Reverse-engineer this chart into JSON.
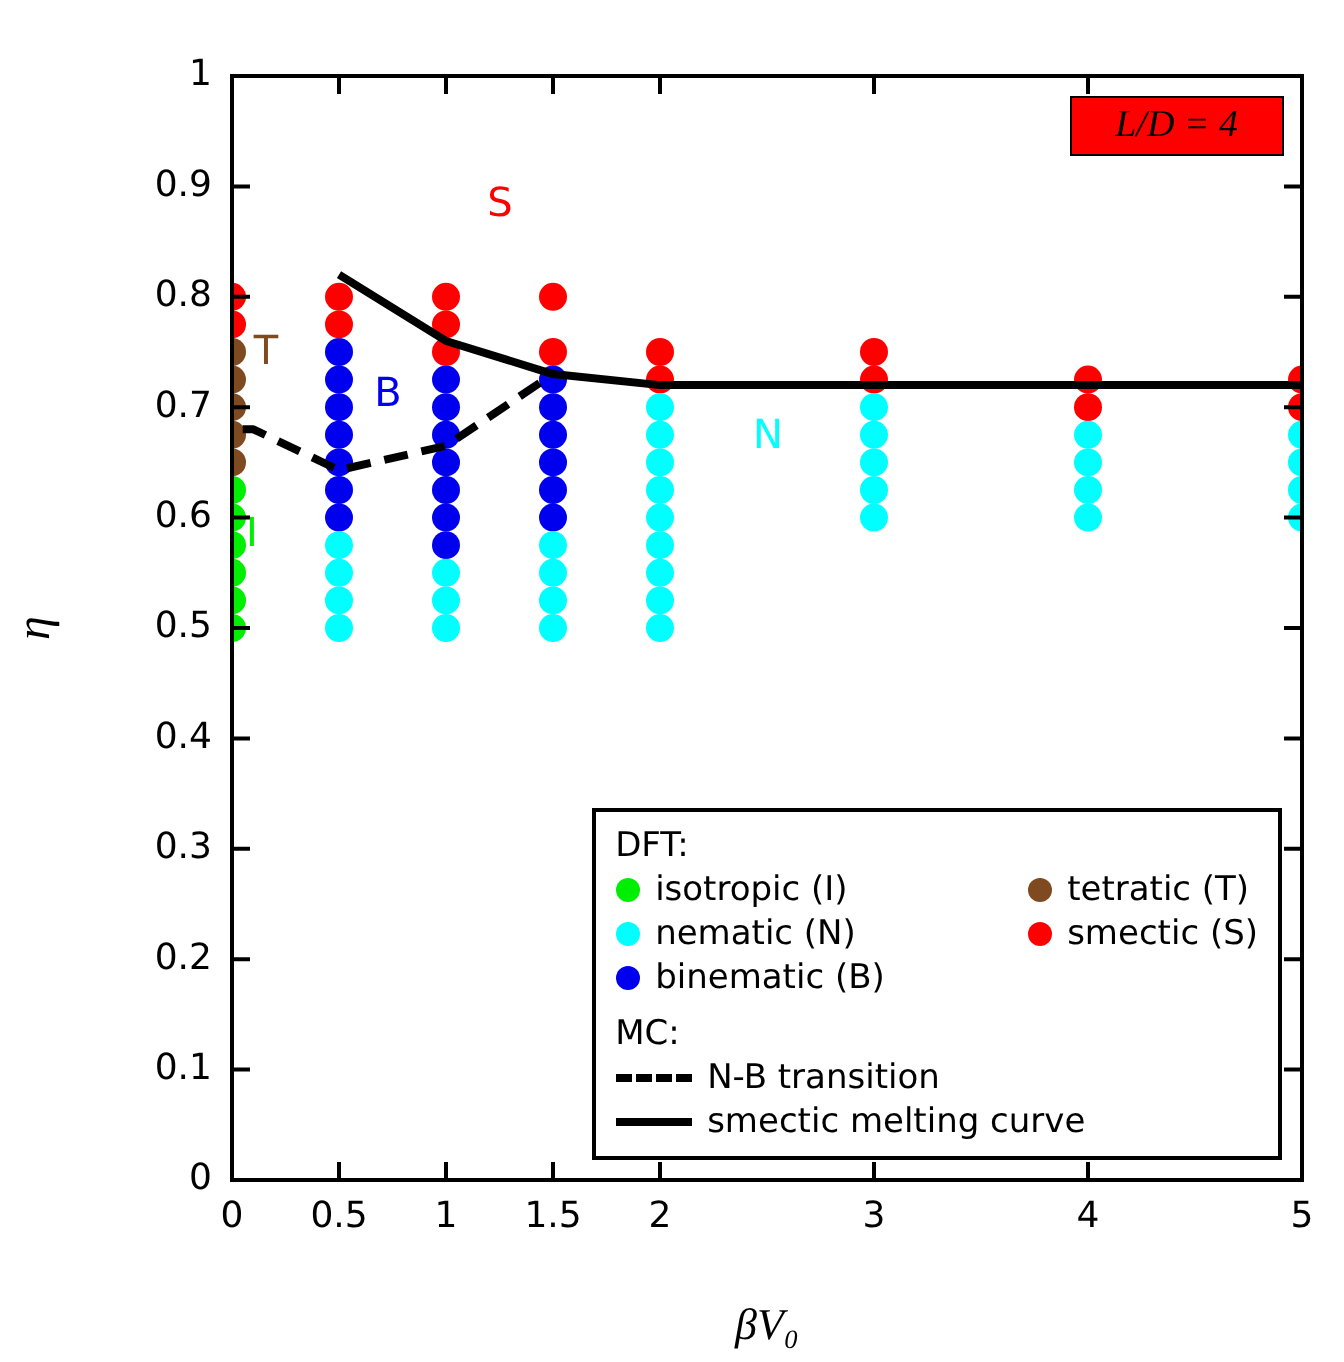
{
  "chart_data": {
    "type": "scatter",
    "title": "L/D = 4",
    "xlabel": "βV₀",
    "ylabel": "η",
    "xlim": [
      0,
      5
    ],
    "xticks": [
      0,
      0.5,
      1,
      1.5,
      2,
      3,
      4,
      5
    ],
    "ylim": [
      0,
      1
    ],
    "yticks": [
      0,
      0.1,
      0.2,
      0.3,
      0.4,
      0.5,
      0.6,
      0.7,
      0.8,
      0.9,
      1
    ],
    "grid": false,
    "legend": "bottom right",
    "marker": "circle",
    "annotations": [
      "DFT:",
      "MC:",
      "S",
      "T",
      "B",
      "N",
      "I"
    ],
    "series": [
      {
        "name": "isotropic (I)",
        "color": "#00ee00",
        "x": [
          0,
          0,
          0,
          0,
          0,
          0
        ],
        "values": [
          0.5,
          0.525,
          0.55,
          0.575,
          0.6,
          0.625
        ]
      },
      {
        "name": "tetratic (T)",
        "color": "#7f4a1f",
        "x": [
          0,
          0,
          0,
          0,
          0
        ],
        "values": [
          0.65,
          0.675,
          0.7,
          0.725,
          0.75
        ]
      },
      {
        "name": "nematic (N)",
        "color": "#00ffff",
        "x": [
          0.5,
          0.5,
          0.5,
          0.5,
          1,
          1,
          1,
          1.5,
          1.5,
          1.5,
          1.5,
          2,
          2,
          2,
          2,
          2,
          2,
          2,
          2,
          2,
          3,
          3,
          3,
          3,
          3,
          4,
          4,
          4,
          4,
          5,
          5,
          5,
          5
        ],
        "values": [
          0.5,
          0.525,
          0.55,
          0.575,
          0.5,
          0.525,
          0.55,
          0.5,
          0.525,
          0.55,
          0.575,
          0.5,
          0.525,
          0.55,
          0.575,
          0.6,
          0.625,
          0.65,
          0.675,
          0.7,
          0.6,
          0.625,
          0.65,
          0.675,
          0.7,
          0.6,
          0.625,
          0.65,
          0.675,
          0.6,
          0.625,
          0.65,
          0.675
        ]
      },
      {
        "name": "smectic (S)",
        "color": "#ff0000",
        "x": [
          0,
          0,
          0.5,
          0.5,
          1,
          1,
          1,
          1.5,
          1.5,
          2,
          2,
          3,
          3,
          4,
          4,
          5,
          5
        ],
        "values": [
          0.775,
          0.8,
          0.775,
          0.8,
          0.75,
          0.775,
          0.8,
          0.75,
          0.8,
          0.725,
          0.75,
          0.725,
          0.75,
          0.7,
          0.725,
          0.7,
          0.725
        ]
      },
      {
        "name": "binematic (B)",
        "color": "#0000ee",
        "x": [
          0.5,
          0.5,
          0.5,
          0.5,
          0.5,
          0.5,
          0.5,
          1,
          1,
          1,
          1,
          1,
          1,
          1,
          1.5,
          1.5,
          1.5,
          1.5,
          1.5,
          1.5
        ],
        "values": [
          0.6,
          0.625,
          0.65,
          0.675,
          0.7,
          0.725,
          0.75,
          0.575,
          0.6,
          0.625,
          0.65,
          0.675,
          0.7,
          0.725,
          0.6,
          0.625,
          0.65,
          0.675,
          0.7,
          0.725
        ]
      },
      {
        "name": "N-B transition",
        "type": "line",
        "color": "#000000",
        "line_style": "dashed",
        "marker": "none",
        "x": [
          0.05,
          0.1,
          0.5,
          1,
          1.5
        ],
        "values": [
          0.68,
          0.68,
          0.643,
          0.665,
          0.73
        ]
      },
      {
        "name": "smectic melting curve",
        "type": "line",
        "color": "#000000",
        "line_style": "solid",
        "marker": "none",
        "x": [
          0.5,
          1,
          1.5,
          2,
          5
        ],
        "values": [
          0.82,
          0.76,
          0.73,
          0.72,
          0.72
        ]
      }
    ]
  }
}
